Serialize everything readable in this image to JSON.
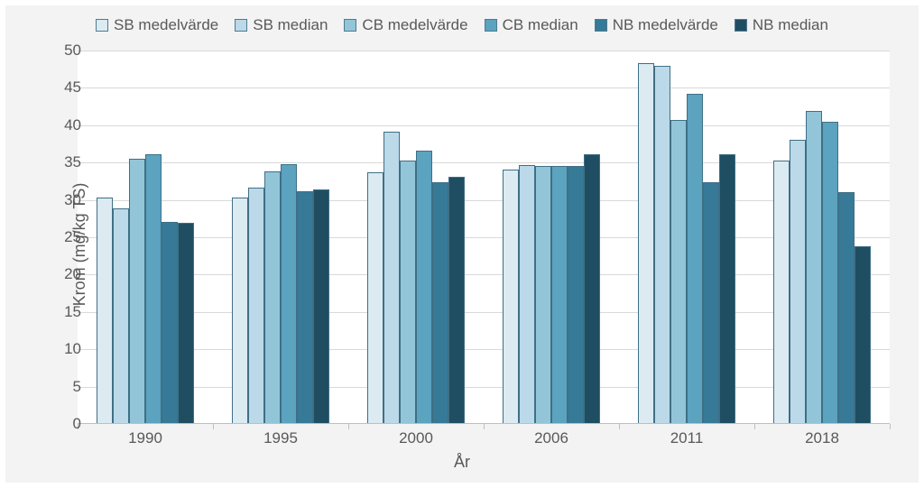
{
  "chart": {
    "type": "bar",
    "background_outer": "#f3f3f3",
    "background_plot": "#ffffff",
    "grid_color": "#d9d9d9",
    "axis_color": "#bfbfbf",
    "text_color": "#595959",
    "label_fontsize": 17,
    "title_fontsize": 18,
    "x_title": "År",
    "y_title": "Krom (mg/kg TS)",
    "ylim": [
      0,
      50
    ],
    "ytick_step": 5,
    "categories": [
      "1990",
      "1995",
      "2000",
      "2006",
      "2011",
      "2018"
    ],
    "series": [
      {
        "name": "SB medelvärde",
        "color": "#dceaf2",
        "values": [
          30.3,
          30.3,
          33.7,
          34.1,
          48.3,
          35.3
        ]
      },
      {
        "name": "SB median",
        "color": "#bbd9e8",
        "values": [
          28.9,
          31.7,
          39.1,
          34.7,
          48.0,
          38.0
        ]
      },
      {
        "name": "CB medelvärde",
        "color": "#93c5d9",
        "values": [
          35.5,
          33.8,
          35.3,
          34.5,
          40.7,
          41.9
        ]
      },
      {
        "name": "CB median",
        "color": "#5ba3bf",
        "values": [
          36.1,
          34.8,
          36.6,
          34.6,
          44.2,
          40.5
        ]
      },
      {
        "name": "NB medelvärde",
        "color": "#367a97",
        "values": [
          27.0,
          31.2,
          32.4,
          34.6,
          32.4,
          31.0
        ]
      },
      {
        "name": "NB median",
        "color": "#1f4e63",
        "values": [
          26.9,
          31.4,
          33.1,
          36.1,
          36.1,
          23.8
        ]
      }
    ],
    "bar_border_color": "#3f6f86",
    "group_inner_ratio": 0.72,
    "legend_swatch_border": "#4f7a8f"
  }
}
